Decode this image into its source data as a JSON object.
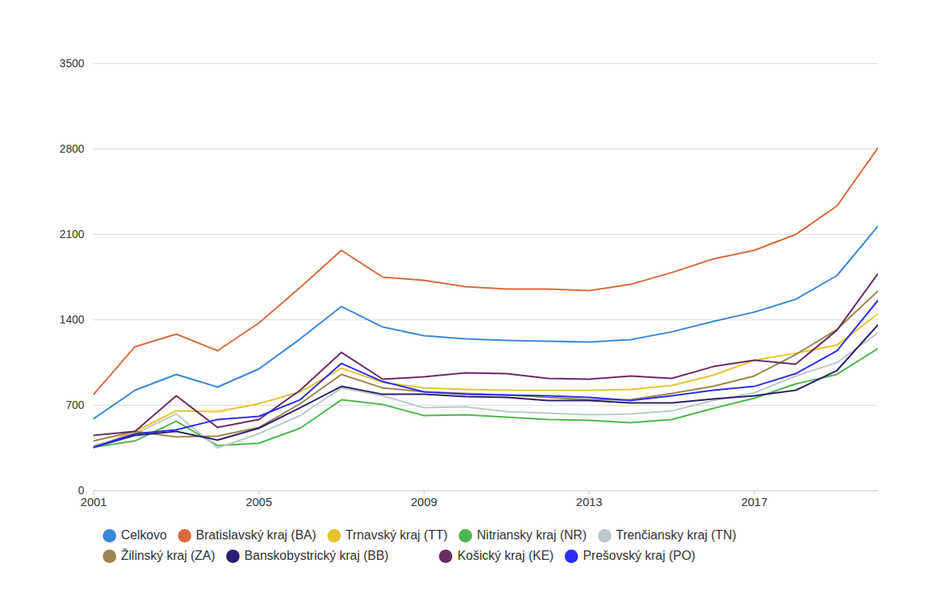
{
  "chart_data": {
    "type": "line",
    "x": [
      2001,
      2002,
      2003,
      2004,
      2005,
      2006,
      2007,
      2008,
      2009,
      2010,
      2011,
      2012,
      2013,
      2014,
      2015,
      2016,
      2017,
      2018,
      2019,
      2020
    ],
    "xlim": [
      2001,
      2020
    ],
    "xticks": [
      2001,
      2005,
      2009,
      2013,
      2017
    ],
    "ylim": [
      0,
      3500
    ],
    "yticks": [
      0,
      700,
      1400,
      2100,
      2800,
      3500
    ],
    "grid": true,
    "legend": "bottom",
    "series": [
      {
        "name": "Celkovo",
        "color": "#3a87d8",
        "values": [
          590,
          823,
          953,
          849,
          998,
          1244,
          1510,
          1341,
          1270,
          1244,
          1231,
          1225,
          1218,
          1238,
          1302,
          1387,
          1464,
          1568,
          1763,
          2171
        ]
      },
      {
        "name": "Bratislavský kraj (BA)",
        "color": "#d96a3a",
        "values": [
          790,
          1180,
          1283,
          1147,
          1374,
          1665,
          1970,
          1750,
          1724,
          1672,
          1652,
          1652,
          1640,
          1691,
          1788,
          1899,
          1970,
          2100,
          2333,
          2812
        ]
      },
      {
        "name": "Trnavský kraj (TT)",
        "color": "#e6c32c",
        "values": [
          356,
          486,
          654,
          648,
          713,
          810,
          1004,
          888,
          842,
          829,
          823,
          823,
          823,
          829,
          862,
          946,
          1069,
          1127,
          1192,
          1452
        ]
      },
      {
        "name": "Nitriansky kraj (NR)",
        "color": "#4cb84c",
        "values": [
          356,
          408,
          570,
          369,
          389,
          512,
          745,
          706,
          616,
          622,
          603,
          583,
          577,
          557,
          583,
          674,
          758,
          875,
          953,
          1166
        ]
      },
      {
        "name": "Trenčiansky kraj (TN)",
        "color": "#bcc8c8",
        "values": [
          369,
          467,
          629,
          350,
          467,
          616,
          842,
          778,
          680,
          687,
          648,
          635,
          622,
          629,
          654,
          739,
          803,
          940,
          1050,
          1296
        ]
      },
      {
        "name": "Žilinský kraj (ZA)",
        "color": "#9b8450",
        "values": [
          408,
          486,
          441,
          447,
          518,
          713,
          953,
          842,
          810,
          797,
          784,
          765,
          745,
          745,
          797,
          855,
          940,
          1115,
          1322,
          1639
        ]
      },
      {
        "name": "Banskobystrický kraj (BB)",
        "color": "#2a1f6e",
        "values": [
          356,
          454,
          486,
          415,
          512,
          680,
          855,
          790,
          790,
          771,
          765,
          739,
          739,
          719,
          719,
          752,
          778,
          823,
          985,
          1361
        ]
      },
      {
        "name": "Košický kraj (KE)",
        "color": "#6b2a63",
        "values": [
          454,
          486,
          778,
          518,
          583,
          823,
          1134,
          914,
          933,
          966,
          959,
          920,
          914,
          940,
          920,
          1017,
          1069,
          1037,
          1315,
          1782
        ]
      },
      {
        "name": "Prešovský kraj (PO)",
        "color": "#2b2ef0",
        "values": [
          356,
          467,
          499,
          583,
          609,
          745,
          1043,
          894,
          810,
          790,
          784,
          778,
          765,
          739,
          778,
          823,
          855,
          959,
          1147,
          1562
        ]
      }
    ]
  }
}
